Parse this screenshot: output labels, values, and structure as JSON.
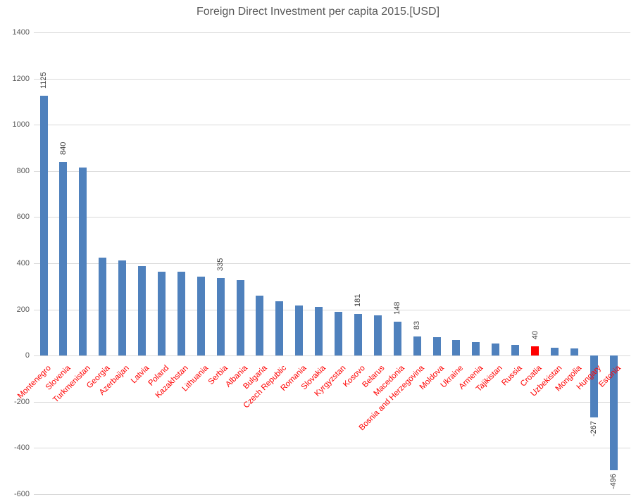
{
  "chart_data": {
    "type": "bar",
    "title": "Foreign Direct Investment per capita 2015.[USD]",
    "xlabel": "",
    "ylabel": "",
    "categories": [
      "Montenegro",
      "Slovenia",
      "Turkmenistan",
      "Georgia",
      "Azerbaijan",
      "Latvia",
      "Poland",
      "Kazakhstan",
      "Lithuania",
      "Serbia",
      "Albania",
      "Bulgaria",
      "Czech Republic",
      "Romania",
      "Slovakia",
      "Kyrgyzstan",
      "Kosovo",
      "Belarus",
      "Macedonia",
      "Bosnia and Herzegovina",
      "Moldova",
      "Ukraine",
      "Armenia",
      "Tajikistan",
      "Russia",
      "Croatia",
      "Uzbekistan",
      "Mongolia",
      "Hungary",
      "Estonia"
    ],
    "values": [
      1125,
      840,
      815,
      425,
      412,
      388,
      363,
      362,
      342,
      335,
      328,
      261,
      236,
      218,
      210,
      189,
      181,
      173,
      148,
      83,
      81,
      69,
      59,
      51,
      47,
      40,
      33,
      30,
      -267,
      -496
    ],
    "bar_labels": [
      "1125",
      "840",
      null,
      null,
      null,
      null,
      null,
      null,
      null,
      "335",
      null,
      null,
      null,
      null,
      null,
      null,
      "181",
      null,
      "148",
      "83",
      null,
      null,
      null,
      null,
      null,
      "40",
      null,
      null,
      "-267",
      "-496"
    ],
    "bar_color": "#4f81bd",
    "highlight_category": "Croatia",
    "highlight_color": "#ff0000",
    "category_label_color": "#ff0000",
    "value_label_color": "#404040",
    "axis_label_color": "#595959",
    "gridline_color": "#d9d9d9",
    "ylim": [
      -600,
      1400
    ],
    "y_tick_step": 200,
    "y_ticks": [
      1400,
      1200,
      1000,
      800,
      600,
      400,
      200,
      0,
      -200,
      -400,
      -600
    ],
    "grid": true,
    "legend": false
  }
}
